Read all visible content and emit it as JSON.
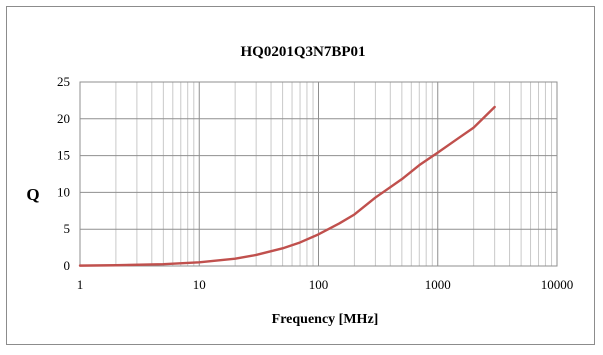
{
  "chart_data": {
    "type": "line",
    "title": "HQ0201Q3N7BP01",
    "xlabel": "Frequency [MHz]",
    "ylabel": "Q",
    "x_scale": "log",
    "xlim": [
      1,
      10000
    ],
    "ylim": [
      0,
      25
    ],
    "x_ticks": [
      "1",
      "10",
      "100",
      "1000",
      "10000"
    ],
    "y_ticks": [
      "0",
      "5",
      "10",
      "15",
      "20",
      "25"
    ],
    "grid": true,
    "legend": "none",
    "series": [
      {
        "color": "#c0504d",
        "x": [
          1,
          2,
          5,
          10,
          20,
          30,
          50,
          70,
          100,
          150,
          200,
          300,
          500,
          700,
          1000,
          1500,
          2000,
          3000
        ],
        "y": [
          0.05,
          0.1,
          0.25,
          0.5,
          1.0,
          1.5,
          2.4,
          3.2,
          4.3,
          5.8,
          7.0,
          9.3,
          11.8,
          13.7,
          15.4,
          17.4,
          18.8,
          21.6
        ]
      }
    ]
  }
}
